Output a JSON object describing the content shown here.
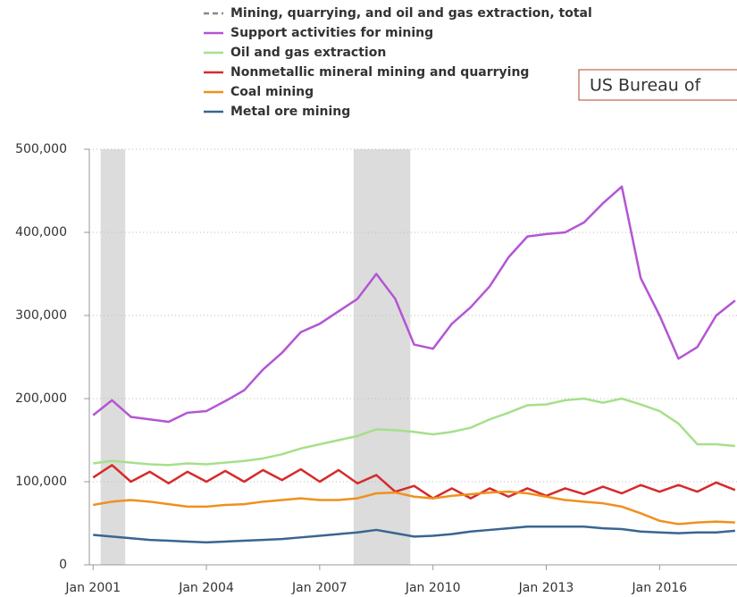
{
  "chart_data": {
    "type": "line",
    "note_box": "US Bureau of",
    "x": [
      2001,
      2001.5,
      2002,
      2002.5,
      2003,
      2003.5,
      2004,
      2004.5,
      2005,
      2005.5,
      2006,
      2006.5,
      2007,
      2007.5,
      2008,
      2008.5,
      2009,
      2009.5,
      2010,
      2010.5,
      2011,
      2011.5,
      2012,
      2012.5,
      2013,
      2013.5,
      2014,
      2014.5,
      2015,
      2015.5,
      2016,
      2016.5,
      2017,
      2017.5,
      2018
    ],
    "series": [
      {
        "name": "Mining, quarrying, and oil and gas extraction, total",
        "color": "#888888",
        "dashed": true,
        "values": [
          null,
          null,
          null,
          null,
          null,
          null,
          null,
          null,
          null,
          null,
          null,
          null,
          null,
          null,
          null,
          null,
          null,
          null,
          null,
          null,
          null,
          null,
          null,
          null,
          null,
          null,
          null,
          null,
          null,
          null,
          null,
          null,
          null,
          null,
          null
        ]
      },
      {
        "name": "Support activities for mining",
        "color": "#b455d4",
        "values": [
          180000,
          198000,
          178000,
          175000,
          172000,
          183000,
          185000,
          197000,
          210000,
          235000,
          255000,
          280000,
          290000,
          305000,
          320000,
          350000,
          320000,
          265000,
          260000,
          290000,
          310000,
          335000,
          370000,
          395000,
          398000,
          400000,
          412000,
          435000,
          455000,
          345000,
          300000,
          248000,
          262000,
          300000,
          318000
        ]
      },
      {
        "name": "Oil and gas extraction",
        "color": "#a6e08a",
        "values": [
          122000,
          125000,
          123000,
          121000,
          120000,
          122000,
          121000,
          123000,
          125000,
          128000,
          133000,
          140000,
          145000,
          150000,
          155000,
          163000,
          162000,
          160000,
          157000,
          160000,
          165000,
          175000,
          183000,
          192000,
          193000,
          198000,
          200000,
          195000,
          200000,
          193000,
          185000,
          170000,
          145000,
          145000,
          143000
        ]
      },
      {
        "name": "Nonmetallic mineral mining and quarrying",
        "color": "#d62b2b",
        "values": [
          105000,
          120000,
          100000,
          112000,
          98000,
          112000,
          100000,
          113000,
          100000,
          114000,
          102000,
          115000,
          100000,
          114000,
          98000,
          108000,
          88000,
          95000,
          80000,
          92000,
          80000,
          92000,
          82000,
          92000,
          83000,
          92000,
          85000,
          94000,
          86000,
          96000,
          88000,
          96000,
          88000,
          99000,
          90000
        ]
      },
      {
        "name": "Coal mining",
        "color": "#f0901e",
        "values": [
          72000,
          76000,
          78000,
          76000,
          73000,
          70000,
          70000,
          72000,
          73000,
          76000,
          78000,
          80000,
          78000,
          78000,
          80000,
          86000,
          87000,
          82000,
          80000,
          83000,
          85000,
          87000,
          88000,
          86000,
          82000,
          78000,
          76000,
          74000,
          70000,
          62000,
          53000,
          49000,
          51000,
          52000,
          51000
        ]
      },
      {
        "name": "Metal ore mining",
        "color": "#3a6590",
        "values": [
          36000,
          34000,
          32000,
          30000,
          29000,
          28000,
          27000,
          28000,
          29000,
          30000,
          31000,
          33000,
          35000,
          37000,
          39000,
          42000,
          38000,
          34000,
          35000,
          37000,
          40000,
          42000,
          44000,
          46000,
          46000,
          46000,
          46000,
          44000,
          43000,
          40000,
          39000,
          38000,
          39000,
          39000,
          41000
        ]
      }
    ],
    "recessions": [
      [
        2001.2,
        2001.85
      ],
      [
        2007.9,
        2009.4
      ]
    ],
    "xlim": [
      2000.9,
      2018.05
    ],
    "ylim": [
      0,
      500000
    ],
    "xticks": [
      {
        "value": 2001,
        "label": "Jan 2001"
      },
      {
        "value": 2004,
        "label": "Jan 2004"
      },
      {
        "value": 2007,
        "label": "Jan 2007"
      },
      {
        "value": 2010,
        "label": "Jan 2010"
      },
      {
        "value": 2013,
        "label": "Jan 2013"
      },
      {
        "value": 2016,
        "label": "Jan 2016"
      }
    ],
    "yticks": [
      0,
      {
        "value": 100000,
        "label": "100,000"
      },
      {
        "value": 200000,
        "label": "200,000"
      },
      {
        "value": 300000,
        "label": "300,000"
      },
      {
        "value": 400000,
        "label": "400,000"
      },
      {
        "value": 500000,
        "label": "500,000"
      }
    ],
    "grid": true
  }
}
